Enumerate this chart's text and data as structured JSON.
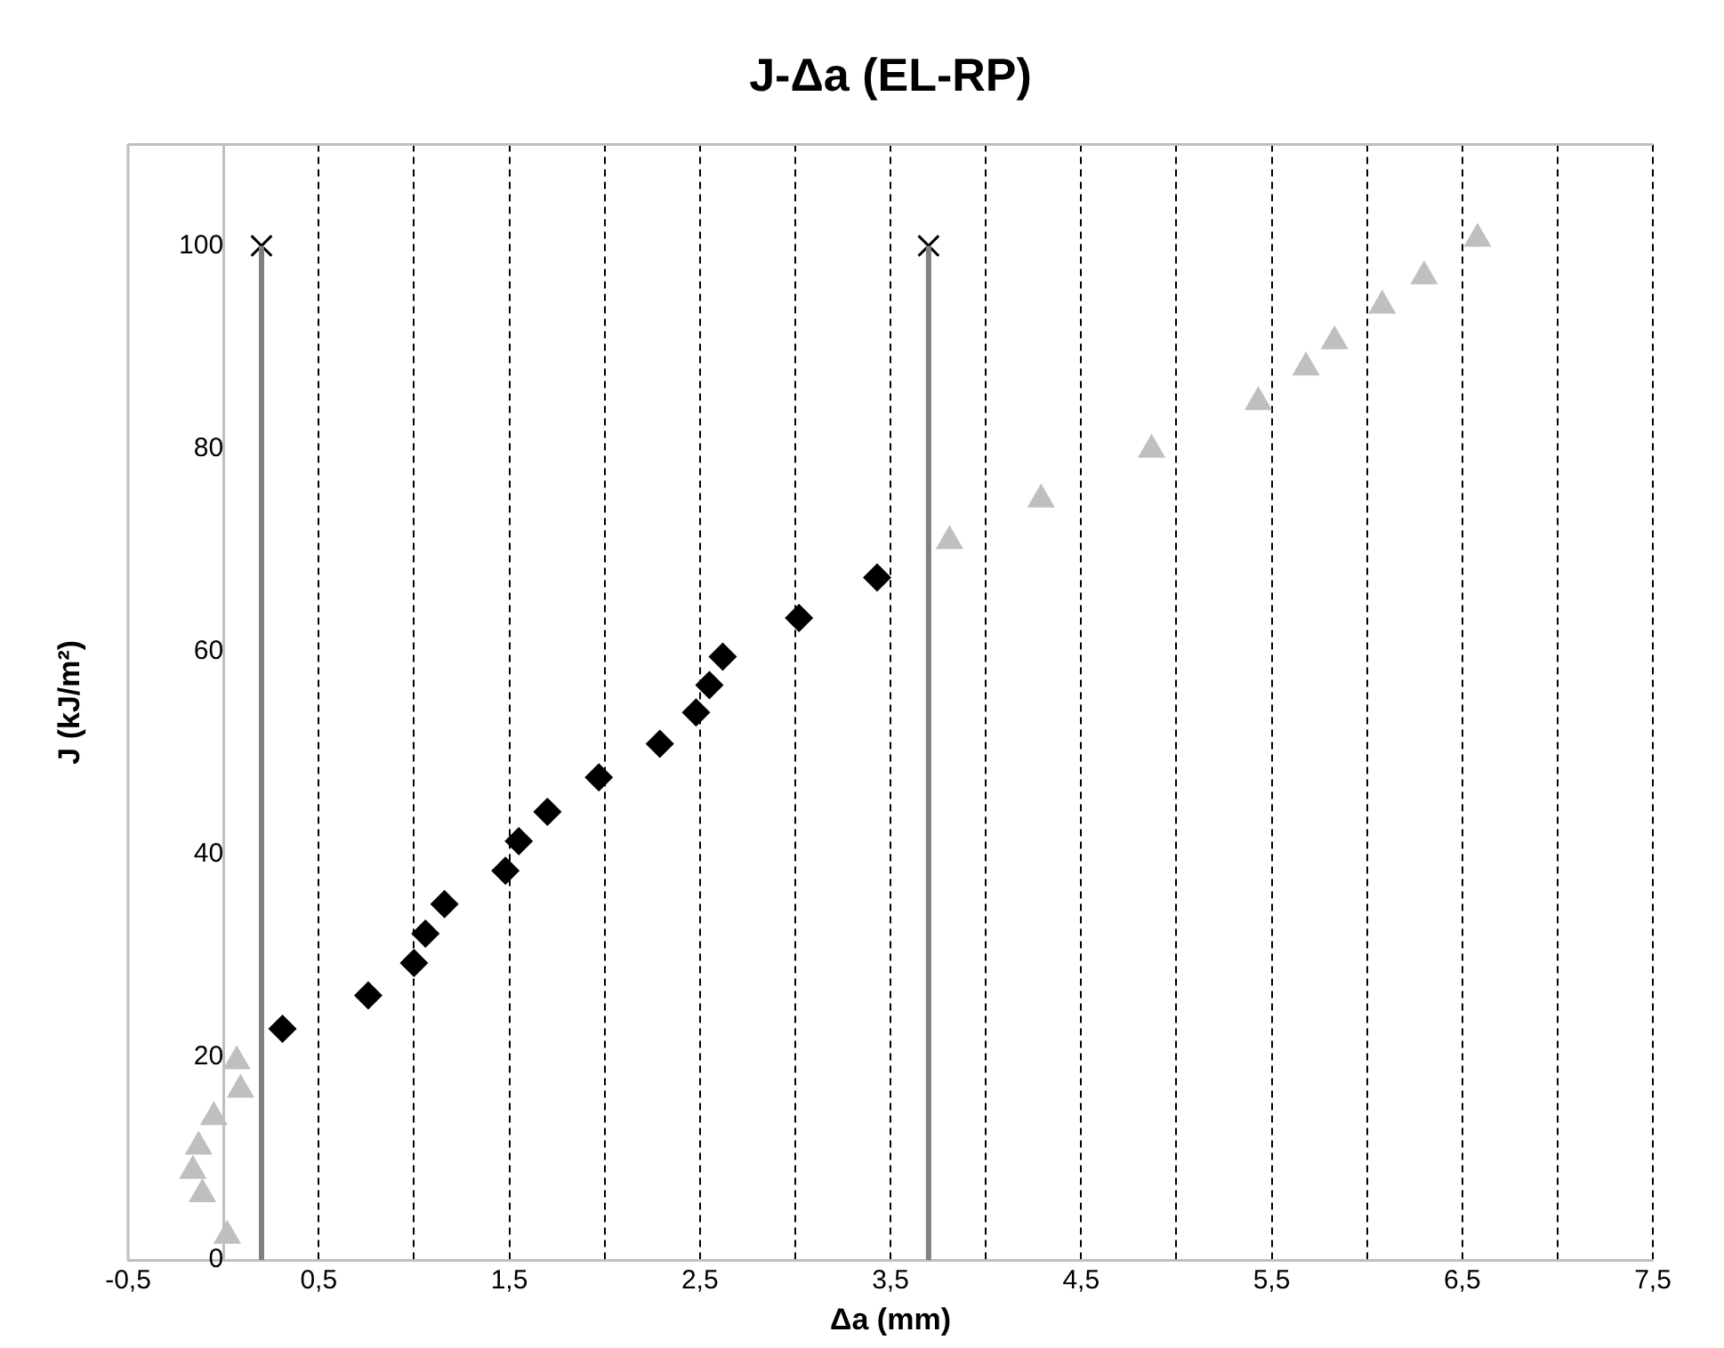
{
  "chart_data": {
    "type": "scatter",
    "title": "J-Δa (EL-RP)",
    "xlabel": "Δa (mm)",
    "ylabel": "J (kJ/m²)",
    "xlim": [
      -0.5,
      7.5
    ],
    "ylim": [
      0,
      110
    ],
    "xticks": [
      {
        "value": -0.5,
        "label": "-0,5"
      },
      {
        "value": 0,
        "label": null
      },
      {
        "value": 0.5,
        "label": "0,5"
      },
      {
        "value": 1,
        "label": null
      },
      {
        "value": 1.5,
        "label": "1,5"
      },
      {
        "value": 2,
        "label": null
      },
      {
        "value": 2.5,
        "label": "2,5"
      },
      {
        "value": 3,
        "label": null
      },
      {
        "value": 3.5,
        "label": "3,5"
      },
      {
        "value": 4,
        "label": null
      },
      {
        "value": 4.5,
        "label": "4,5"
      },
      {
        "value": 5,
        "label": null
      },
      {
        "value": 5.5,
        "label": "5,5"
      },
      {
        "value": 6,
        "label": null
      },
      {
        "value": 6.5,
        "label": "6,5"
      },
      {
        "value": 7,
        "label": null
      },
      {
        "value": 7.5,
        "label": "7,5"
      }
    ],
    "yticks": [
      0,
      20,
      40,
      60,
      80,
      100
    ],
    "grid": "x",
    "legend": false,
    "series": [
      {
        "type": "scatter",
        "color": "#bfbfbf",
        "marker": "triangle",
        "x": [
          0.07,
          0.09,
          -0.05,
          -0.13,
          -0.16,
          -0.11,
          0.02,
          3.81,
          4.29,
          4.87,
          5.43,
          5.68,
          5.83,
          6.08,
          6.3,
          6.58
        ],
        "values": [
          19.6,
          16.8,
          14.1,
          11.2,
          8.8,
          6.5,
          2.4,
          70.9,
          75.0,
          79.9,
          84.6,
          88.0,
          90.6,
          94.1,
          97.0,
          100.7
        ]
      },
      {
        "type": "scatter",
        "color": "#000000",
        "marker": "diamond",
        "x": [
          0.31,
          0.76,
          1.0,
          1.06,
          1.16,
          1.48,
          1.55,
          1.7,
          1.97,
          2.29,
          2.48,
          2.55,
          2.62,
          3.02,
          3.43
        ],
        "values": [
          22.8,
          26.1,
          29.3,
          32.2,
          35.1,
          38.4,
          41.3,
          44.2,
          47.6,
          50.9,
          54.0,
          56.7,
          59.5,
          63.3,
          67.3
        ]
      },
      {
        "type": "line",
        "color": "#808080",
        "marker": "none",
        "line_style": "solid",
        "x": [
          0.2,
          0.2
        ],
        "values": [
          0,
          100
        ]
      },
      {
        "type": "line",
        "color": "#808080",
        "marker": "none",
        "line_style": "solid",
        "x": [
          3.7,
          3.7
        ],
        "values": [
          0,
          100
        ]
      },
      {
        "type": "scatter",
        "color": "#000000",
        "marker": "cross",
        "x": [
          0.2,
          3.7
        ],
        "values": [
          100,
          100
        ]
      }
    ]
  }
}
